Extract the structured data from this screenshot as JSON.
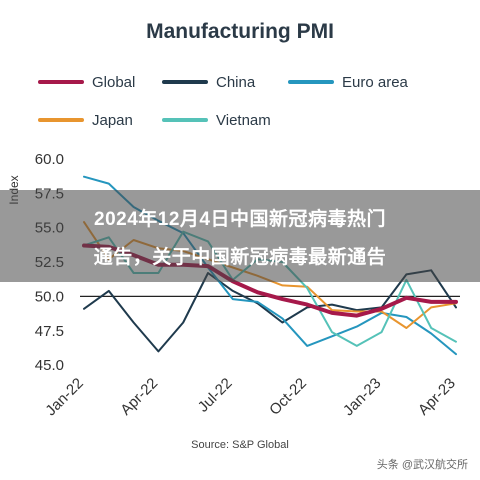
{
  "chart_data": {
    "type": "line",
    "title": "Manufacturing PMI",
    "ylabel": "Index",
    "xlabel": "",
    "ylim": [
      44.5,
      60.5
    ],
    "yticks": [
      "60.0",
      "57.5",
      "55.0",
      "52.5",
      "50.0",
      "47.5",
      "45.0"
    ],
    "xtick_labels": [
      "Jan-22",
      "Apr-22",
      "Jul-22",
      "Oct-22",
      "Jan-23",
      "Apr-23"
    ],
    "x": [
      "Jan-22",
      "Feb-22",
      "Mar-22",
      "Apr-22",
      "May-22",
      "Jun-22",
      "Jul-22",
      "Aug-22",
      "Sep-22",
      "Oct-22",
      "Nov-22",
      "Dec-22",
      "Jan-23",
      "Feb-23",
      "Mar-23",
      "Apr-23"
    ],
    "reference_line": 50,
    "legend_position": "top",
    "series": [
      {
        "name": "Global",
        "color": "#a6194a",
        "values": [
          53.7,
          53.6,
          53.0,
          52.3,
          52.3,
          52.2,
          51.1,
          50.3,
          49.8,
          49.4,
          48.8,
          48.6,
          49.1,
          49.9,
          49.6,
          49.6
        ]
      },
      {
        "name": "China",
        "color": "#1f3a4d",
        "values": [
          49.1,
          50.4,
          48.1,
          46.0,
          48.1,
          51.7,
          50.4,
          49.5,
          48.1,
          49.2,
          49.4,
          49.0,
          49.2,
          51.6,
          51.9,
          49.2
        ]
      },
      {
        "name": "Euro area",
        "color": "#2596be",
        "values": [
          58.7,
          58.2,
          56.5,
          55.5,
          54.6,
          52.1,
          49.8,
          49.6,
          48.4,
          46.4,
          47.1,
          47.8,
          48.8,
          48.5,
          47.3,
          45.8
        ]
      },
      {
        "name": "Japan",
        "color": "#e8952f",
        "values": [
          55.4,
          52.7,
          54.1,
          53.5,
          53.3,
          52.7,
          52.1,
          51.5,
          50.8,
          50.7,
          49.0,
          48.9,
          48.9,
          47.7,
          49.2,
          49.5
        ]
      },
      {
        "name": "Vietnam",
        "color": "#55c2b8",
        "values": [
          53.7,
          54.3,
          51.7,
          51.7,
          54.7,
          54.0,
          51.2,
          52.7,
          52.5,
          50.6,
          47.4,
          46.4,
          47.4,
          51.2,
          47.7,
          46.7
        ]
      }
    ]
  },
  "overlay": {
    "line1": "2024年12月4日中国新冠病毒热门",
    "line2": "通告，关于中国新冠病毒最新通告"
  },
  "source": "Source: S&P Global",
  "watermark": "头条 @武汉航交所"
}
